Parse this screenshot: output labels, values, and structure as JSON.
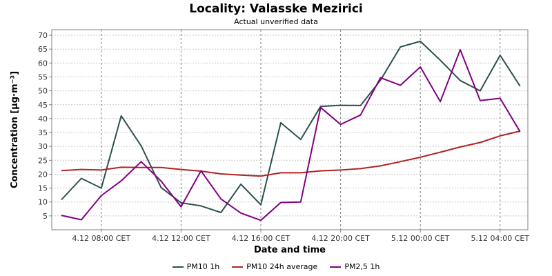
{
  "chart_data": {
    "type": "line",
    "title": "Locality: Valasske Mezirici",
    "subtitle": "Actual unverified data",
    "xlabel": "Date and time",
    "ylabel": "Concentration [µg·m⁻³]",
    "ylim": [
      0,
      72
    ],
    "yticks": [
      5,
      10,
      15,
      20,
      25,
      30,
      35,
      40,
      45,
      50,
      55,
      60,
      65,
      70
    ],
    "x": [
      "4.12 06:00",
      "4.12 07:00",
      "4.12 08:00",
      "4.12 09:00",
      "4.12 10:00",
      "4.12 11:00",
      "4.12 12:00",
      "4.12 13:00",
      "4.12 14:00",
      "4.12 15:00",
      "4.12 16:00",
      "4.12 17:00",
      "4.12 18:00",
      "4.12 19:00",
      "4.12 20:00",
      "4.12 21:00",
      "4.12 22:00",
      "4.12 23:00",
      "5.12 00:00",
      "5.12 01:00",
      "5.12 02:00",
      "5.12 03:00",
      "5.12 04:00",
      "5.12 05:00"
    ],
    "xtick_labels": [
      {
        "index": 2,
        "label": "4.12 08:00 CET"
      },
      {
        "index": 6,
        "label": "4.12 12:00 CET"
      },
      {
        "index": 10,
        "label": "4.12 16:00 CET"
      },
      {
        "index": 14,
        "label": "4.12 20:00 CET"
      },
      {
        "index": 18,
        "label": "5.12 00:00 CET"
      },
      {
        "index": 22,
        "label": "5.12 04:00 CET"
      }
    ],
    "grid": true,
    "legend_position": "bottom",
    "series": [
      {
        "name": "PM10 1h",
        "color": "#2f4f4f",
        "values": [
          10.8,
          18.5,
          15.0,
          41.0,
          30.2,
          15.2,
          9.7,
          8.6,
          6.2,
          16.4,
          9.0,
          38.5,
          32.5,
          44.4,
          44.8,
          44.7,
          53.8,
          65.8,
          67.8,
          61.0,
          53.7,
          50.0,
          62.8,
          51.7
        ]
      },
      {
        "name": "PM10 24h average",
        "color": "#b22222",
        "values": [
          21.3,
          21.7,
          21.5,
          22.5,
          22.4,
          22.4,
          21.7,
          21.1,
          20.1,
          19.7,
          19.3,
          20.5,
          20.5,
          21.2,
          21.5,
          22.0,
          23.0,
          24.5,
          26.1,
          27.9,
          29.8,
          31.4,
          33.8,
          35.5
        ]
      },
      {
        "name": "PM2,5 1h",
        "color": "#800080",
        "values": [
          5.2,
          3.6,
          12.3,
          17.6,
          24.5,
          17.5,
          8.3,
          21.2,
          11.1,
          6.0,
          3.4,
          9.8,
          10.0,
          44.0,
          37.9,
          41.3,
          54.7,
          52.0,
          58.6,
          46.1,
          64.8,
          46.5,
          47.3,
          35.3
        ]
      }
    ]
  }
}
